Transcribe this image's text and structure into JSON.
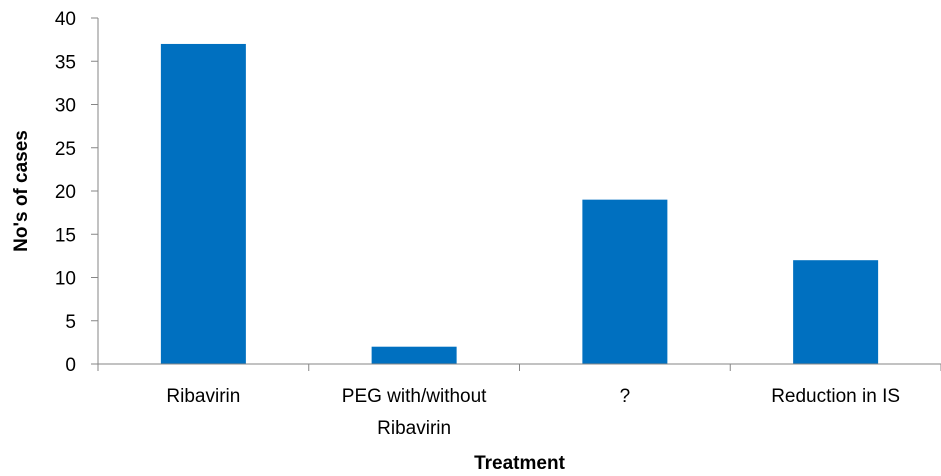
{
  "chart_data": {
    "type": "bar",
    "categories": [
      [
        "Ribavirin"
      ],
      [
        "PEG with/without",
        "Ribavirin"
      ],
      [
        "?"
      ],
      [
        "Reduction in IS"
      ]
    ],
    "values": [
      37,
      2,
      19,
      12
    ],
    "xlabel": "Treatment",
    "ylabel": "No's of cases",
    "ylim": [
      0,
      40
    ],
    "yticks": [
      0,
      5,
      10,
      15,
      20,
      25,
      30,
      35,
      40
    ],
    "grid": false,
    "legend": "none",
    "colors": {
      "bar": "#0070C0",
      "axis": "#868686",
      "text": "#000000"
    }
  }
}
